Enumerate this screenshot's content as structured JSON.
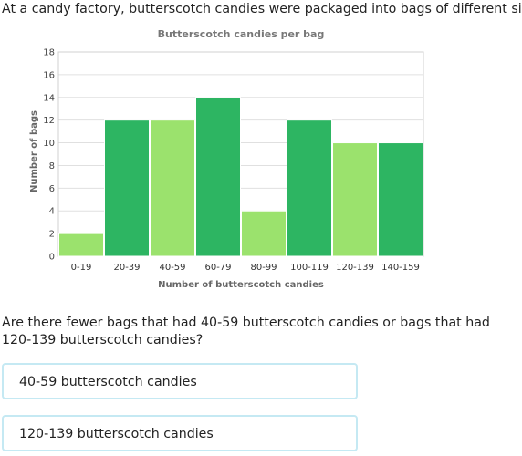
{
  "intro": "At a candy factory, butterscotch candies were packaged into bags of different sizes.",
  "question": "Are there fewer bags that had 40-59 butterscotch candies or bags that had 120-139 butterscotch candies?",
  "choices": [
    {
      "label": "40-59 butterscotch candies"
    },
    {
      "label": "120-139 butterscotch candies"
    }
  ],
  "colors": {
    "light_green": "#9be26d",
    "dark_green": "#2db562",
    "grid": "#e0e0e0",
    "choice_border": "#c5e9f3"
  },
  "chart_data": {
    "type": "bar",
    "title": "Butterscotch candies per bag",
    "xlabel": "Number of butterscotch candies",
    "ylabel": "Number of bags",
    "categories": [
      "0-19",
      "20-39",
      "40-59",
      "60-79",
      "80-99",
      "100-119",
      "120-139",
      "140-159"
    ],
    "values": [
      2,
      12,
      12,
      14,
      4,
      12,
      10,
      10
    ],
    "bar_colors": [
      "light",
      "dark",
      "light",
      "dark",
      "light",
      "dark",
      "light",
      "dark"
    ],
    "ylim": [
      0,
      18
    ],
    "yticks": [
      0,
      2,
      4,
      6,
      8,
      10,
      12,
      14,
      16,
      18
    ],
    "grid": true
  }
}
